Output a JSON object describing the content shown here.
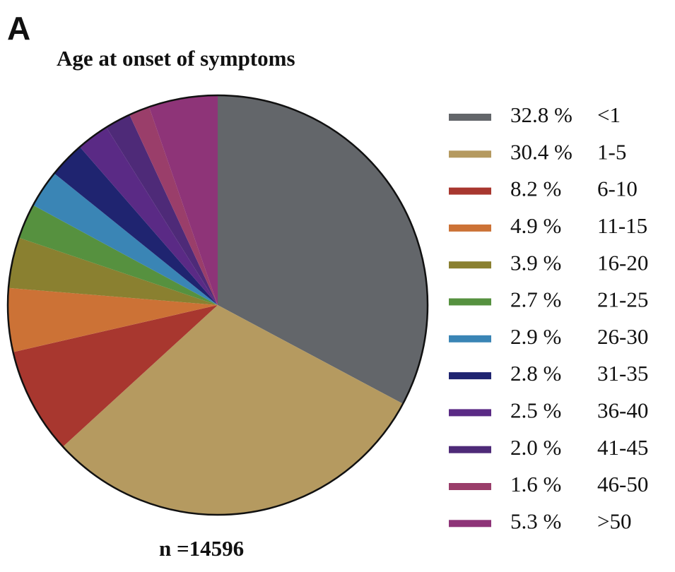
{
  "chart_data": {
    "type": "pie",
    "panel_label": "A",
    "title": "Age at onset of symptoms",
    "annotation": "n =14596",
    "categories": [
      "<1",
      "1-5",
      "6-10",
      "11-15",
      "16-20",
      "21-25",
      "26-30",
      "31-35",
      "36-40",
      "41-45",
      "46-50",
      ">50"
    ],
    "values": [
      32.8,
      30.4,
      8.2,
      4.9,
      3.9,
      2.7,
      2.9,
      2.8,
      2.5,
      2.0,
      1.6,
      5.3
    ],
    "value_labels": [
      "32.8 %",
      "30.4 %",
      "8.2 %",
      "4.9 %",
      "3.9 %",
      "2.7 %",
      "2.9 %",
      "2.8 %",
      "2.5 %",
      "2.0 %",
      "1.6 %",
      "5.3 %"
    ],
    "colors": [
      "#63666a",
      "#b59a60",
      "#a8372f",
      "#cc7236",
      "#8a8030",
      "#56913f",
      "#3a85b5",
      "#1f2470",
      "#5a2a85",
      "#4e2a78",
      "#9a3e6a",
      "#8e3478"
    ],
    "legend": "right"
  }
}
